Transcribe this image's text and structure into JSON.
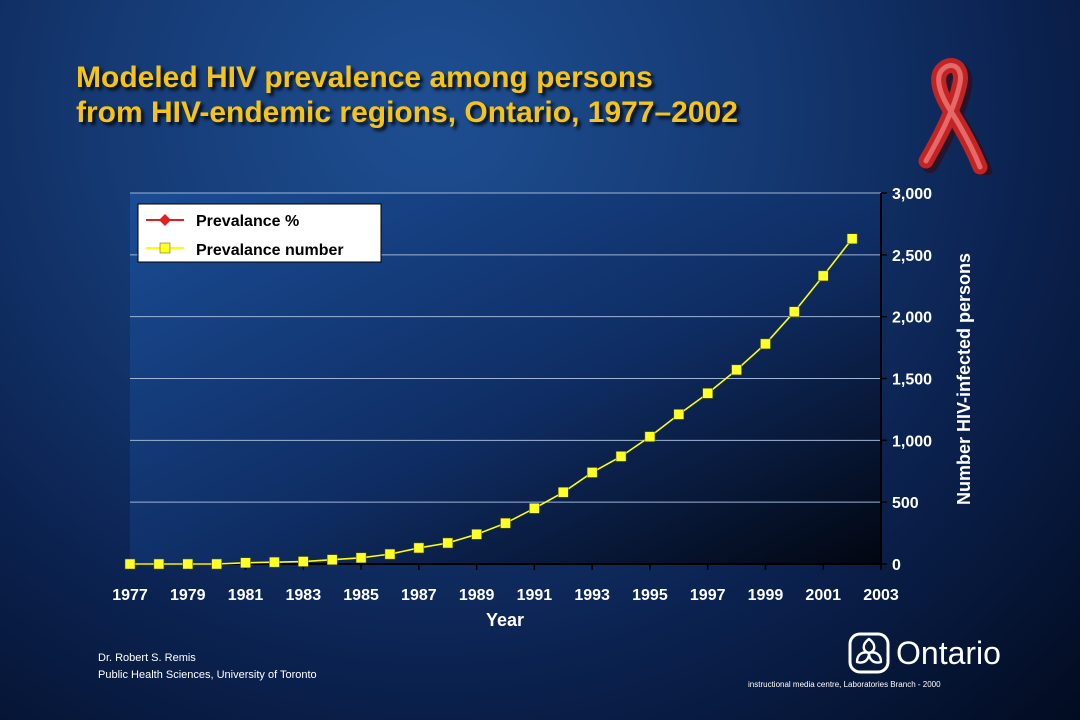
{
  "slide": {
    "title_line1": "Modeled HIV prevalence among persons",
    "title_line2": "from HIV-endemic regions, Ontario, 1977–2002",
    "credit_name": "Dr. Robert S. Remis",
    "credit_affiliation": "Public Health Sciences, University of Toronto",
    "brand_name": "Ontario",
    "footer": "instructional media centre, Laboratories Branch - 2000",
    "ribbon_icon": "awareness-ribbon-icon",
    "brand_icon": "ontario-trillium-icon",
    "colors": {
      "title": "#f6c417",
      "line": "#ffff00",
      "marker": "#ffff2a",
      "legend_red": "#e02020"
    }
  },
  "chart_data": {
    "type": "line",
    "xlabel": "Year",
    "ylabel": "Number HIV-infected persons",
    "xlim": [
      1977,
      2003
    ],
    "ylim": [
      0,
      3000
    ],
    "x_ticks": [
      1977,
      1979,
      1981,
      1983,
      1985,
      1987,
      1989,
      1991,
      1993,
      1995,
      1997,
      1999,
      2001,
      2003
    ],
    "x_tick_labels": [
      "1977",
      "1979",
      "1981",
      "1983",
      "1985",
      "1987",
      "1989",
      "1991",
      "1993",
      "1995",
      "1997",
      "1999",
      "2001",
      "2003"
    ],
    "y_ticks": [
      0,
      500,
      1000,
      1500,
      2000,
      2500,
      3000
    ],
    "y_tick_labels": [
      "0",
      "500",
      "1,000",
      "1,500",
      "2,000",
      "2,500",
      "3,000"
    ],
    "y_axis_side": "right",
    "grid": "horizontal",
    "legend_position": "top-left",
    "series": [
      {
        "name": "Prevalance %",
        "marker": "diamond",
        "color": "#e02020",
        "x": [],
        "values": []
      },
      {
        "name": "Prevalance number",
        "marker": "square",
        "color": "#ffff00",
        "x": [
          1977,
          1978,
          1979,
          1980,
          1981,
          1982,
          1983,
          1984,
          1985,
          1986,
          1987,
          1988,
          1989,
          1990,
          1991,
          1992,
          1993,
          1994,
          1995,
          1996,
          1997,
          1998,
          1999,
          2000,
          2001,
          2002
        ],
        "values": [
          0,
          0,
          0,
          0,
          10,
          15,
          20,
          35,
          50,
          80,
          130,
          170,
          240,
          330,
          450,
          580,
          740,
          870,
          1030,
          1210,
          1380,
          1570,
          1780,
          2040,
          2330,
          2630
        ]
      }
    ]
  }
}
